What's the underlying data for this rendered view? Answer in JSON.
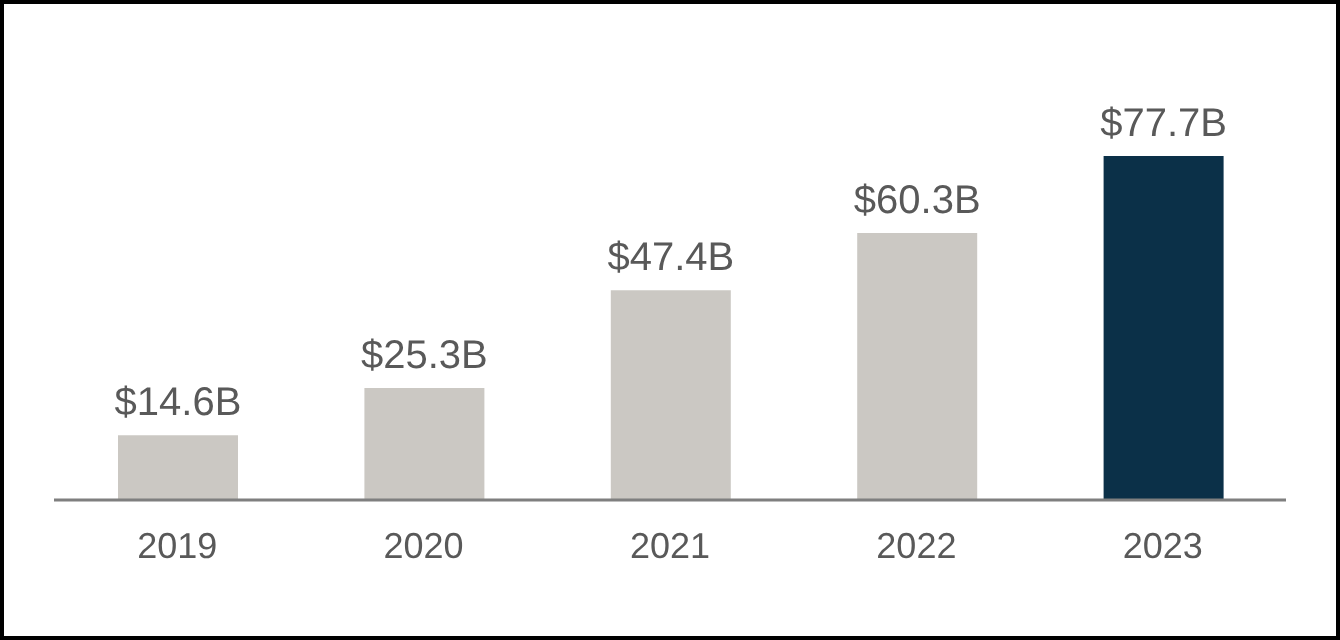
{
  "chart_data": {
    "type": "bar",
    "categories": [
      "2019",
      "2020",
      "2021",
      "2022",
      "2023"
    ],
    "values": [
      14.6,
      25.3,
      47.4,
      60.3,
      77.7
    ],
    "value_labels": [
      "$14.6B",
      "$25.3B",
      "$47.4B",
      "$60.3B",
      "$77.7B"
    ],
    "colors": [
      "#cbc8c3",
      "#cbc8c3",
      "#cbc8c3",
      "#cbc8c3",
      "#0b3048"
    ],
    "grid": false,
    "legend": false
  }
}
